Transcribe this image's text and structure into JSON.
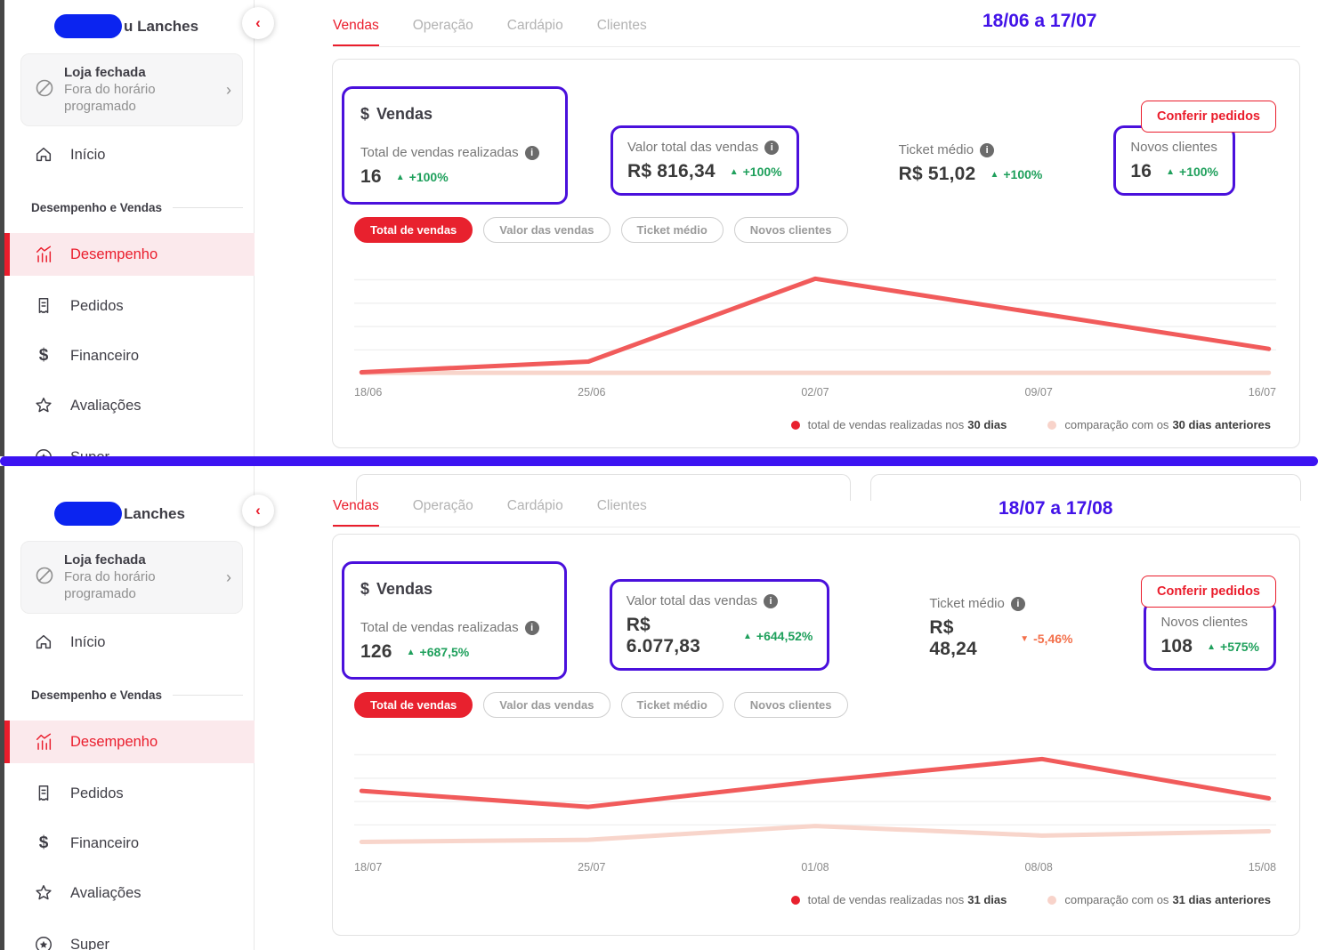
{
  "colors": {
    "accent_red": "#ea1d2c",
    "pill_red": "#e8212e",
    "line_red": "#f15b5b",
    "line_pink": "#f8d5cb",
    "green_up": "#1fa05c",
    "orange_down": "#f3704b",
    "annotation_purple": "#4a10dc",
    "divider_blue": "#3c13f2",
    "logo_blob_blue": "#0b24f0",
    "active_item_bg": "#fbe9ec"
  },
  "icons": {
    "dollar": "$",
    "chevron_left": "‹",
    "chevron_right": "›",
    "up_arrow": "▲",
    "down_arrow": "▼",
    "info": "i"
  },
  "panels": [
    {
      "sidebar": {
        "brand": "u Lanches",
        "status_title": "Loja fechada",
        "status_subtitle": "Fora do horário programado",
        "section_label": "Desempenho e Vendas",
        "items": [
          {
            "label": "Início"
          },
          {
            "label": "Desempenho",
            "active": true
          },
          {
            "label": "Pedidos"
          },
          {
            "label": "Financeiro"
          },
          {
            "label": "Avaliações"
          },
          {
            "label": "Super"
          }
        ]
      },
      "tabs": [
        {
          "label": "Vendas",
          "active": true
        },
        {
          "label": "Operação"
        },
        {
          "label": "Cardápio"
        },
        {
          "label": "Clientes"
        }
      ],
      "annotation_date": "18/06 a 17/07",
      "card": {
        "title": "Vendas",
        "confer_button": "Conferir pedidos",
        "metrics": [
          {
            "label": "Total de vendas realizadas",
            "value": "16",
            "delta": "+100%",
            "dir": "up",
            "info": true
          },
          {
            "label": "Valor total das vendas",
            "value": "R$ 816,34",
            "delta": "+100%",
            "dir": "up",
            "info": true
          },
          {
            "label": "Ticket médio",
            "value": "R$ 51,02",
            "delta": "+100%",
            "dir": "up",
            "info": true
          },
          {
            "label": "Novos clientes",
            "value": "16",
            "delta": "+100%",
            "dir": "up",
            "info": false
          }
        ],
        "pills": [
          {
            "label": "Total de vendas",
            "active": true
          },
          {
            "label": "Valor das vendas"
          },
          {
            "label": "Ticket médio"
          },
          {
            "label": "Novos clientes"
          }
        ],
        "legend": [
          {
            "text": "total de vendas realizadas nos ",
            "bold": "30 dias"
          },
          {
            "text": "comparação com os ",
            "bold": "30 dias anteriores"
          }
        ]
      }
    },
    {
      "sidebar": {
        "brand": "Lanches",
        "status_title": "Loja fechada",
        "status_subtitle": "Fora do horário programado",
        "section_label": "Desempenho e Vendas",
        "items": [
          {
            "label": "Início"
          },
          {
            "label": "Desempenho",
            "active": true
          },
          {
            "label": "Pedidos"
          },
          {
            "label": "Financeiro"
          },
          {
            "label": "Avaliações"
          },
          {
            "label": "Super"
          }
        ]
      },
      "tabs": [
        {
          "label": "Vendas",
          "active": true
        },
        {
          "label": "Operação"
        },
        {
          "label": "Cardápio"
        },
        {
          "label": "Clientes"
        }
      ],
      "annotation_date": "18/07 a 17/08",
      "card": {
        "title": "Vendas",
        "confer_button": "Conferir pedidos",
        "metrics": [
          {
            "label": "Total de vendas realizadas",
            "value": "126",
            "delta": "+687,5%",
            "dir": "up",
            "info": true
          },
          {
            "label": "Valor total das vendas",
            "value": "R$ 6.077,83",
            "delta": "+644,52%",
            "dir": "up",
            "info": true
          },
          {
            "label": "Ticket médio",
            "value": "R$ 48,24",
            "delta": "-5,46%",
            "dir": "down",
            "info": true
          },
          {
            "label": "Novos clientes",
            "value": "108",
            "delta": "+575%",
            "dir": "up",
            "info": false
          }
        ],
        "pills": [
          {
            "label": "Total de vendas",
            "active": true
          },
          {
            "label": "Valor das vendas"
          },
          {
            "label": "Ticket médio"
          },
          {
            "label": "Novos clientes"
          }
        ],
        "legend": [
          {
            "text": "total de vendas realizadas nos ",
            "bold": "31 dias"
          },
          {
            "text": "comparação com os ",
            "bold": "31 dias anteriores"
          }
        ]
      }
    }
  ],
  "chart_data": [
    {
      "type": "line",
      "title": "Total de vendas — 18/06 a 17/07",
      "x": [
        "18/06",
        "25/06",
        "02/07",
        "09/07",
        "16/07"
      ],
      "series": [
        {
          "name": "total de vendas realizadas nos 30 dias",
          "color": "#f15b5b",
          "values": [
            0.1,
            1.1,
            8.9,
            5.6,
            2.3
          ]
        },
        {
          "name": "comparação com os 30 dias anteriores",
          "color": "#f8d5cb",
          "values": [
            0.05,
            0.05,
            0.05,
            0.05,
            0.05
          ]
        }
      ],
      "ylim": [
        0,
        10
      ],
      "units_note": "relative scale estimated from unlabeled y-axis gridlines",
      "grid": true,
      "legend_position": "bottom-right"
    },
    {
      "type": "line",
      "title": "Total de vendas — 18/07 a 17/08",
      "x": [
        "18/07",
        "25/07",
        "01/08",
        "08/08",
        "15/08"
      ],
      "series": [
        {
          "name": "total de vendas realizadas nos 31 dias",
          "color": "#f15b5b",
          "values": [
            5.4,
            3.9,
            6.3,
            8.4,
            4.7
          ]
        },
        {
          "name": "comparação com os 31 dias anteriores",
          "color": "#f8d5cb",
          "values": [
            0.6,
            0.8,
            2.1,
            1.2,
            1.6
          ]
        }
      ],
      "ylim": [
        0,
        10
      ],
      "units_note": "relative scale estimated from unlabeled y-axis gridlines",
      "grid": true,
      "legend_position": "bottom-right"
    }
  ]
}
